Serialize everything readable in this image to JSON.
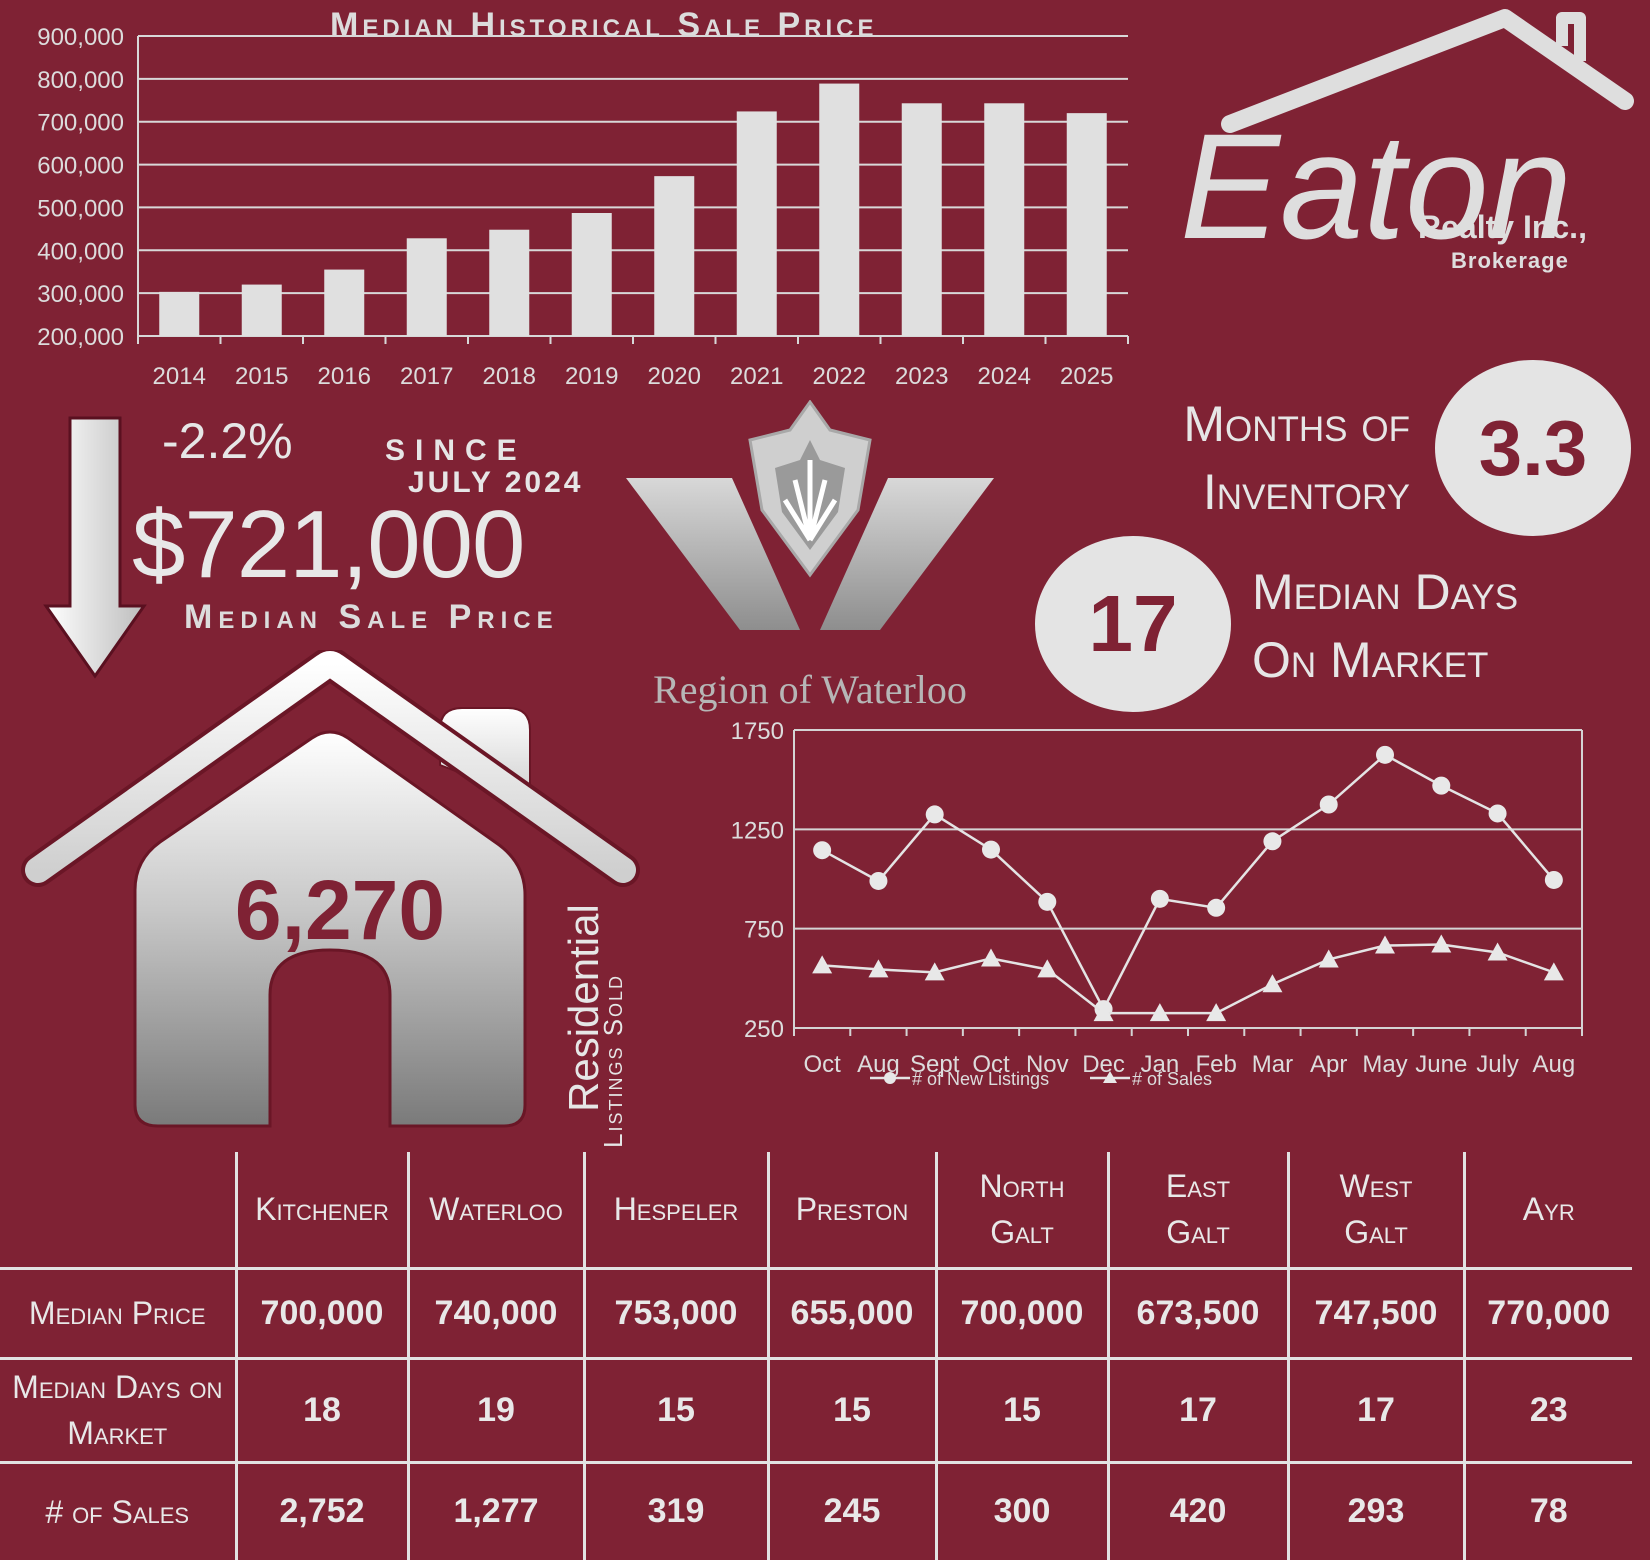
{
  "bar_chart": {
    "title": "Median Historical Sale Price"
  },
  "summary": {
    "change_pct": "-2.2%",
    "since_label": "SINCE",
    "since_date": "JULY 2024",
    "median_price": "$721,000",
    "median_price_label": "Median Sale Price",
    "months_inventory_label_1": "Months of",
    "months_inventory_label_2": "Inventory",
    "months_inventory_value": "3.3",
    "median_dom_value": "17",
    "median_dom_label_1": "Median Days",
    "median_dom_label_2": "On Market",
    "listings_sold_value": "6,270",
    "residential_label": "Residential",
    "listings_sold_label": "Listings Sold"
  },
  "branding": {
    "logo_text": "Eaton",
    "logo_sub_1": "Realty Inc.,",
    "logo_sub_2": "Brokerage",
    "region_name": "Region of Waterloo"
  },
  "colors": {
    "background": "#7f2234",
    "foreground": "#e2e2e2",
    "bar_fill": "#e0e0e0"
  },
  "chart_data": [
    {
      "type": "bar",
      "title": "Median Historical Sale Price",
      "categories": [
        "2014",
        "2015",
        "2016",
        "2017",
        "2018",
        "2019",
        "2020",
        "2021",
        "2022",
        "2023",
        "2024",
        "2025"
      ],
      "values": [
        303000,
        320000,
        355000,
        428000,
        448000,
        487000,
        573000,
        724000,
        789000,
        743000,
        743000,
        720000
      ],
      "ylim": [
        200000,
        900000
      ],
      "yticks": [
        "200,000",
        "300,000",
        "400,000",
        "500,000",
        "600,000",
        "700,000",
        "800,000",
        "900,000"
      ],
      "grid": true
    },
    {
      "type": "line",
      "categories": [
        "Oct",
        "Aug",
        "Sept",
        "Oct",
        "Nov",
        "Dec",
        "Jan",
        "Feb",
        "Mar",
        "Apr",
        "May",
        "June",
        "July",
        "Aug"
      ],
      "series": [
        {
          "name": "# of New Listings",
          "marker": "circle",
          "values": [
            1145,
            990,
            1325,
            1148,
            885,
            345,
            900,
            855,
            1190,
            1375,
            1625,
            1470,
            1330,
            995
          ]
        },
        {
          "name": "# of Sales",
          "marker": "triangle",
          "values": [
            565,
            545,
            530,
            600,
            545,
            325,
            325,
            325,
            470,
            595,
            665,
            670,
            630,
            530
          ]
        }
      ],
      "ylim": [
        250,
        1750
      ],
      "yticks": [
        "250",
        "750",
        "1250",
        "1750"
      ],
      "legend": "bottom",
      "grid": true
    }
  ],
  "table": {
    "columns": [
      "Kitchener",
      "Waterloo",
      "Hespeler",
      "Preston",
      "North Galt",
      "East Galt",
      "West Galt",
      "Ayr"
    ],
    "rows": [
      {
        "label": "Median Price",
        "values": [
          "700,000",
          "740,000",
          "753,000",
          "655,000",
          "700,000",
          "673,500",
          "747,500",
          "770,000"
        ]
      },
      {
        "label": "Median Days on Market",
        "values": [
          "18",
          "19",
          "15",
          "15",
          "15",
          "17",
          "17",
          "23"
        ]
      },
      {
        "label": "# of Sales",
        "values": [
          "2,752",
          "1,277",
          "319",
          "245",
          "300",
          "420",
          "293",
          "78"
        ]
      }
    ]
  }
}
